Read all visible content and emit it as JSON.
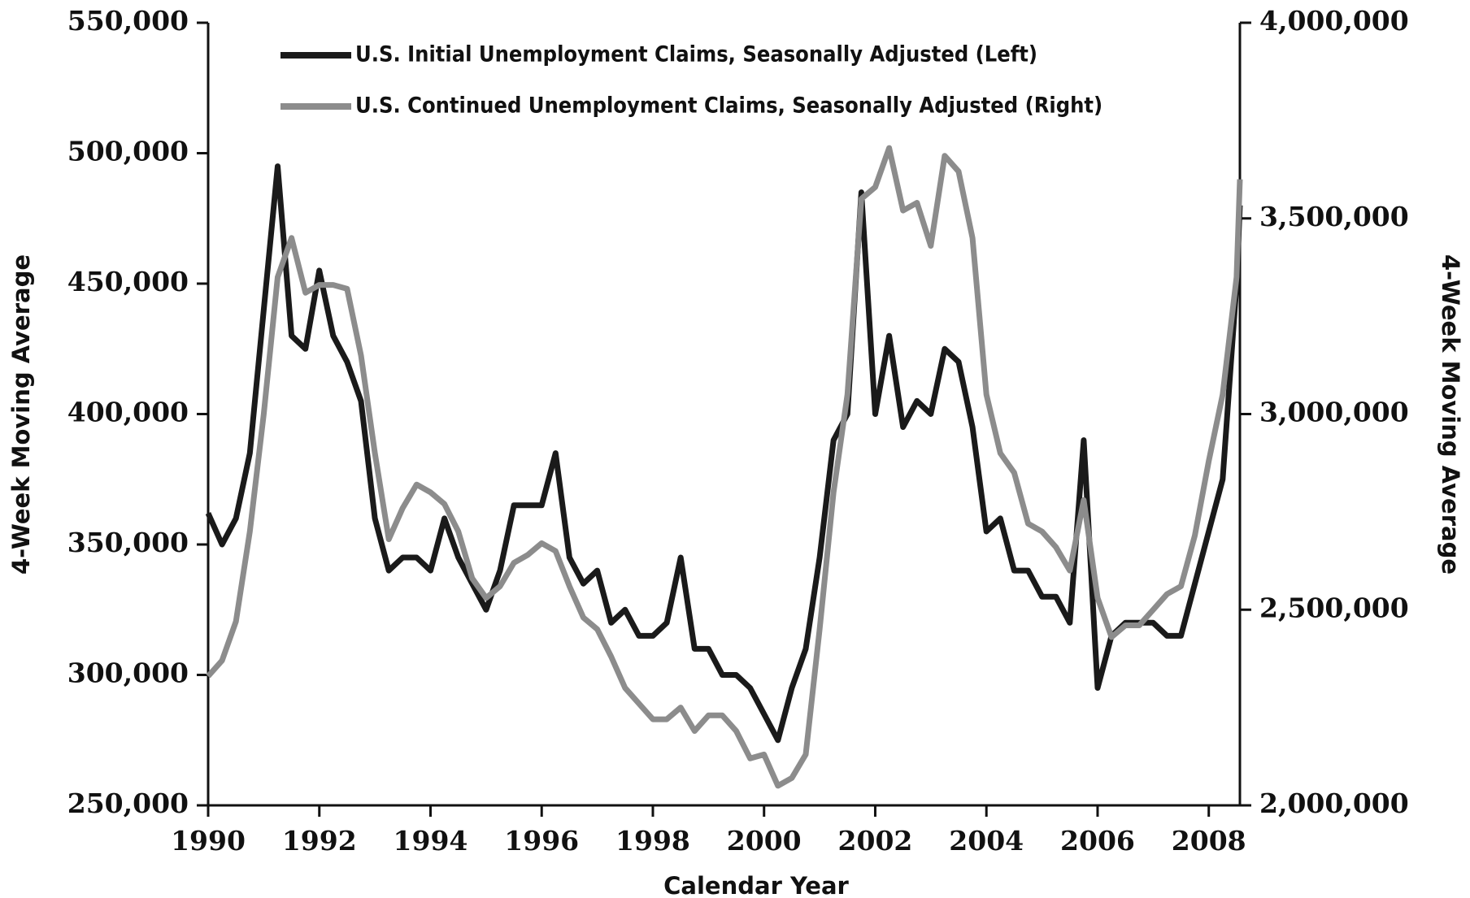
{
  "chart_data": {
    "type": "line",
    "x_label": "Calendar Year",
    "y_label": "4-Week Moving Average",
    "y2_label": "4-Week Moving Average",
    "x": [
      1990,
      1990.25,
      1990.5,
      1990.75,
      1991,
      1991.25,
      1991.5,
      1991.75,
      1992,
      1992.25,
      1992.5,
      1992.75,
      1993,
      1993.25,
      1993.5,
      1993.75,
      1994,
      1994.25,
      1994.5,
      1994.75,
      1995,
      1995.25,
      1995.5,
      1995.75,
      1996,
      1996.25,
      1996.5,
      1996.75,
      1997,
      1997.25,
      1997.5,
      1997.75,
      1998,
      1998.25,
      1998.5,
      1998.75,
      1999,
      1999.25,
      1999.5,
      1999.75,
      2000,
      2000.25,
      2000.5,
      2000.75,
      2001,
      2001.25,
      2001.5,
      2001.75,
      2002,
      2002.25,
      2002.5,
      2002.75,
      2003,
      2003.25,
      2003.5,
      2003.75,
      2004,
      2004.25,
      2004.5,
      2004.75,
      2005,
      2005.25,
      2005.5,
      2005.75,
      2006,
      2006.25,
      2006.5,
      2006.75,
      2007,
      2007.25,
      2007.5,
      2007.75,
      2008,
      2008.25,
      2008.5,
      2008.56
    ],
    "series": [
      {
        "name": "U.S. Initial Unemployment Claims, Seasonally Adjusted (Left)",
        "color": "#1a1a1a",
        "axis": "y",
        "values": [
          362000,
          350000,
          360000,
          385000,
          440000,
          495000,
          430000,
          425000,
          455000,
          430000,
          420000,
          405000,
          360000,
          340000,
          345000,
          345000,
          340000,
          360000,
          345000,
          335000,
          325000,
          340000,
          365000,
          365000,
          365000,
          385000,
          345000,
          335000,
          340000,
          320000,
          325000,
          315000,
          315000,
          320000,
          345000,
          310000,
          310000,
          300000,
          300000,
          295000,
          285000,
          275000,
          295000,
          310000,
          345000,
          390000,
          400000,
          485000,
          400000,
          430000,
          395000,
          405000,
          400000,
          425000,
          420000,
          395000,
          355000,
          360000,
          340000,
          340000,
          330000,
          330000,
          320000,
          390000,
          295000,
          315000,
          320000,
          320000,
          320000,
          315000,
          315000,
          335000,
          355000,
          375000,
          450000,
          480000
        ]
      },
      {
        "name": "U.S. Continued Unemployment Claims, Seasonally Adjusted (Right)",
        "color": "#8c8c8c",
        "axis": "y2",
        "values": [
          2330000,
          2370000,
          2470000,
          2700000,
          3000000,
          3350000,
          3450000,
          3310000,
          3330000,
          3330000,
          3320000,
          3150000,
          2900000,
          2680000,
          2760000,
          2820000,
          2800000,
          2770000,
          2700000,
          2580000,
          2530000,
          2560000,
          2620000,
          2640000,
          2670000,
          2650000,
          2560000,
          2480000,
          2450000,
          2380000,
          2300000,
          2260000,
          2220000,
          2220000,
          2250000,
          2190000,
          2230000,
          2230000,
          2190000,
          2120000,
          2130000,
          2050000,
          2070000,
          2130000,
          2450000,
          2800000,
          3050000,
          3550000,
          3580000,
          3680000,
          3520000,
          3540000,
          3430000,
          3660000,
          3620000,
          3450000,
          3050000,
          2900000,
          2850000,
          2720000,
          2700000,
          2660000,
          2600000,
          2780000,
          2530000,
          2430000,
          2460000,
          2460000,
          2500000,
          2540000,
          2560000,
          2690000,
          2880000,
          3050000,
          3350000,
          3600000
        ]
      }
    ],
    "xlim": [
      1990,
      2008.56
    ],
    "xticks": [
      1990,
      1992,
      1994,
      1996,
      1998,
      2000,
      2002,
      2004,
      2006,
      2008
    ],
    "ylim": [
      250000,
      550000
    ],
    "yticks": [
      {
        "value": 250000,
        "label": "250,000"
      },
      {
        "value": 300000,
        "label": "300,000"
      },
      {
        "value": 350000,
        "label": "350,000"
      },
      {
        "value": 400000,
        "label": "400,000"
      },
      {
        "value": 450000,
        "label": "450,000"
      },
      {
        "value": 500000,
        "label": "500,000"
      },
      {
        "value": 550000,
        "label": "550,000"
      }
    ],
    "y2lim": [
      2000000,
      4000000
    ],
    "y2ticks": [
      {
        "value": 2000000,
        "label": "2,000,000"
      },
      {
        "value": 2500000,
        "label": "2,500,000"
      },
      {
        "value": 3000000,
        "label": "3,000,000"
      },
      {
        "value": 3500000,
        "label": "3,500,000"
      },
      {
        "value": 4000000,
        "label": "4,000,000"
      }
    ]
  }
}
